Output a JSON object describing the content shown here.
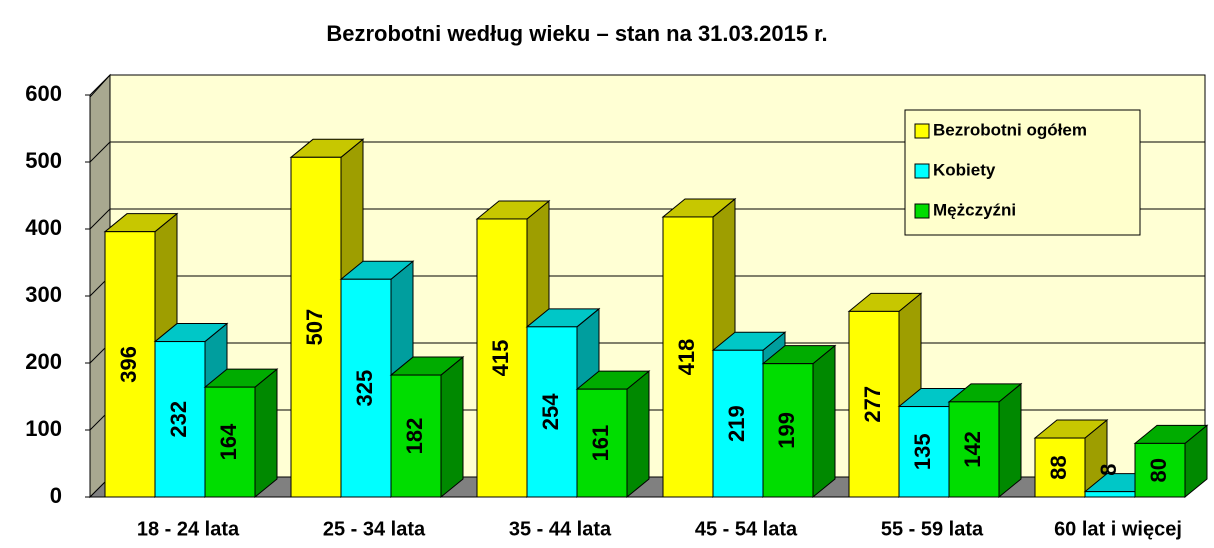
{
  "chart_data": {
    "type": "bar",
    "title": "Bezrobotni według wieku – stan na 31.03.2015 r.",
    "categories": [
      "18 - 24 lata",
      "25 - 34 lata",
      "35 - 44 lata",
      "45 - 54 lata",
      "55 - 59 lata",
      "60 lat i więcej"
    ],
    "series": [
      {
        "name": "Bezrobotni ogółem",
        "color": "#ffff00",
        "values": [
          396,
          507,
          415,
          418,
          277,
          88
        ]
      },
      {
        "name": "Kobiety",
        "color": "#00ffff",
        "values": [
          232,
          325,
          254,
          219,
          135,
          8
        ]
      },
      {
        "name": "Mężczyźni",
        "color": "#00dd00",
        "values": [
          164,
          182,
          161,
          199,
          142,
          80
        ]
      }
    ],
    "ylim": [
      0,
      600
    ],
    "yticks": [
      0,
      100,
      200,
      300,
      400,
      500,
      600
    ],
    "grid": true,
    "legend": "top-right"
  }
}
